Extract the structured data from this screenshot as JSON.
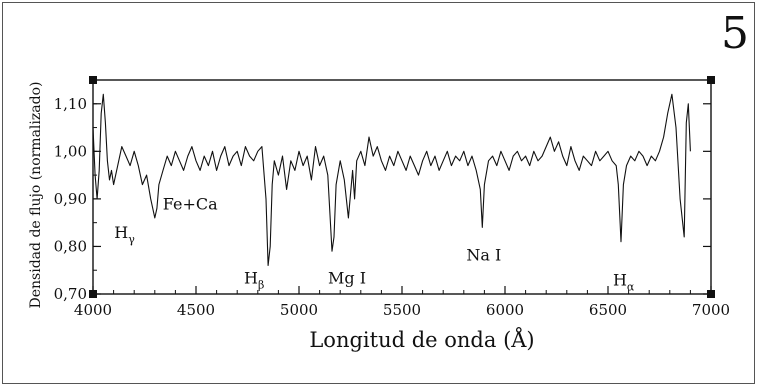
{
  "figure": {
    "number": "5"
  },
  "chart_data": {
    "type": "line",
    "xlabel": "Longitud de onda (Å)",
    "ylabel": "Densidad de flujo (normalizado)",
    "xlim": [
      4000,
      7000
    ],
    "ylim": [
      0.7,
      1.15
    ],
    "xticks": [
      4000,
      4500,
      5000,
      5500,
      6000,
      6500,
      7000
    ],
    "xtick_labels": [
      "4000",
      "4500",
      "5000",
      "5500",
      "6000",
      "6500",
      "7000"
    ],
    "yticks": [
      0.7,
      0.8,
      0.9,
      1.0,
      1.1
    ],
    "ytick_labels": [
      "0,70",
      "0,80",
      "0,90",
      "1,00",
      "1,10"
    ],
    "grid": false,
    "series": [
      {
        "x": [
          4000,
          4010,
          4020,
          4030,
          4040,
          4050,
          4060,
          4070,
          4080,
          4090,
          4100,
          4120,
          4140,
          4160,
          4180,
          4200,
          4220,
          4240,
          4260,
          4280,
          4300,
          4310,
          4320,
          4340,
          4360,
          4380,
          4400,
          4420,
          4440,
          4460,
          4480,
          4500,
          4520,
          4540,
          4560,
          4580,
          4600,
          4620,
          4640,
          4660,
          4680,
          4700,
          4720,
          4740,
          4760,
          4780,
          4800,
          4820,
          4840,
          4850,
          4860,
          4870,
          4880,
          4900,
          4920,
          4940,
          4960,
          4980,
          5000,
          5020,
          5040,
          5060,
          5080,
          5100,
          5120,
          5140,
          5160,
          5170,
          5180,
          5200,
          5220,
          5240,
          5260,
          5270,
          5280,
          5300,
          5320,
          5340,
          5360,
          5380,
          5400,
          5420,
          5440,
          5460,
          5480,
          5500,
          5520,
          5540,
          5560,
          5580,
          5600,
          5620,
          5640,
          5660,
          5680,
          5700,
          5720,
          5740,
          5760,
          5780,
          5800,
          5820,
          5840,
          5860,
          5880,
          5890,
          5900,
          5920,
          5940,
          5960,
          5980,
          6000,
          6020,
          6040,
          6060,
          6080,
          6100,
          6120,
          6140,
          6160,
          6180,
          6200,
          6220,
          6240,
          6260,
          6280,
          6300,
          6320,
          6340,
          6360,
          6380,
          6400,
          6420,
          6440,
          6460,
          6480,
          6500,
          6520,
          6540,
          6550,
          6563,
          6575,
          6590,
          6610,
          6630,
          6650,
          6670,
          6690,
          6710,
          6730,
          6750,
          6770,
          6790,
          6810,
          6830,
          6850,
          6870,
          6880,
          6890,
          6900
        ],
        "y": [
          1.05,
          0.95,
          0.9,
          0.96,
          1.08,
          1.12,
          1.06,
          0.98,
          0.94,
          0.96,
          0.93,
          0.97,
          1.01,
          0.99,
          0.97,
          1.0,
          0.97,
          0.93,
          0.95,
          0.9,
          0.86,
          0.88,
          0.93,
          0.96,
          0.99,
          0.97,
          1.0,
          0.98,
          0.96,
          0.99,
          1.01,
          0.98,
          0.96,
          0.99,
          0.97,
          1.0,
          0.96,
          0.99,
          1.01,
          0.97,
          0.99,
          1.0,
          0.97,
          1.01,
          0.99,
          0.98,
          1.0,
          1.01,
          0.9,
          0.76,
          0.8,
          0.93,
          0.98,
          0.95,
          0.99,
          0.92,
          0.98,
          0.96,
          1.0,
          0.97,
          0.99,
          0.94,
          1.01,
          0.97,
          0.99,
          0.95,
          0.79,
          0.82,
          0.93,
          0.98,
          0.94,
          0.86,
          0.96,
          0.9,
          0.98,
          1.0,
          0.97,
          1.03,
          0.99,
          1.01,
          0.98,
          0.96,
          0.99,
          0.97,
          1.0,
          0.98,
          0.96,
          0.99,
          0.97,
          0.95,
          0.98,
          1.0,
          0.97,
          0.99,
          0.96,
          0.98,
          1.0,
          0.97,
          0.99,
          0.98,
          1.0,
          0.97,
          0.99,
          0.96,
          0.92,
          0.84,
          0.93,
          0.98,
          0.99,
          0.97,
          1.0,
          0.98,
          0.96,
          0.99,
          1.0,
          0.98,
          0.99,
          0.97,
          1.0,
          0.98,
          0.99,
          1.01,
          1.03,
          1.0,
          1.02,
          0.99,
          0.97,
          1.01,
          0.98,
          0.96,
          0.99,
          0.98,
          0.97,
          1.0,
          0.98,
          0.99,
          1.0,
          0.98,
          0.97,
          0.93,
          0.81,
          0.93,
          0.97,
          0.99,
          0.98,
          1.0,
          0.99,
          0.97,
          0.99,
          0.98,
          1.0,
          1.03,
          1.08,
          1.12,
          1.05,
          0.9,
          0.82,
          1.06,
          1.1,
          1.0
        ]
      }
    ],
    "annotations": [
      {
        "label": "H",
        "sub": "γ",
        "x": 4210,
        "y": 0.86
      },
      {
        "label": "Fe+Ca",
        "x": 4300,
        "y": 0.89
      },
      {
        "label": "H",
        "sub": "β",
        "x": 4840,
        "y": 0.76
      },
      {
        "label": "Mg I",
        "x": 5170,
        "y": 0.76
      },
      {
        "label": "Na I",
        "x": 5890,
        "y": 0.8
      },
      {
        "label": "H",
        "sub": "α",
        "x": 6563,
        "y": 0.76
      }
    ]
  }
}
